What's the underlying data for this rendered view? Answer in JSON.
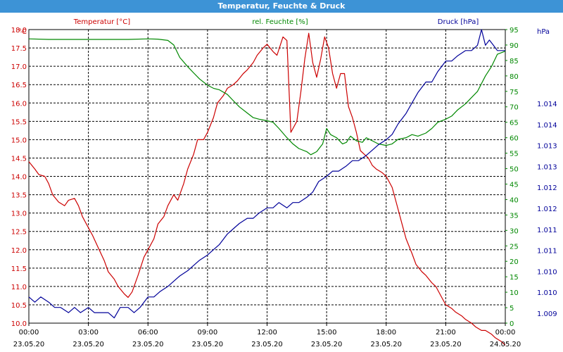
{
  "window": {
    "title": "Temperatur, Feuchte & Druck"
  },
  "chart_data": {
    "type": "line",
    "title": "Temperatur, Feuchte & Druck",
    "grid": true,
    "x_ticks": [
      {
        "time": "00:00",
        "date": "23.05.20"
      },
      {
        "time": "03:00",
        "date": "23.05.20"
      },
      {
        "time": "06:00",
        "date": "23.05.20"
      },
      {
        "time": "09:00",
        "date": "23.05.20"
      },
      {
        "time": "12:00",
        "date": "23.05.20"
      },
      {
        "time": "15:00",
        "date": "23.05.20"
      },
      {
        "time": "18:00",
        "date": "23.05.20"
      },
      {
        "time": "21:00",
        "date": "23.05.20"
      },
      {
        "time": "00:00",
        "date": "24.05.20"
      }
    ],
    "axes": {
      "temperature": {
        "label": "Temperatur [°C]",
        "unit": "°C",
        "color": "#cc0000",
        "range": [
          10.0,
          18.0
        ],
        "ticks": [
          "10.0",
          "10.5",
          "11.0",
          "11.5",
          "12.0",
          "12.5",
          "13.0",
          "13.5",
          "14.0",
          "14.5",
          "15.0",
          "15.5",
          "16.0",
          "16.5",
          "17.0",
          "17.5",
          "18.0"
        ]
      },
      "humidity": {
        "label": "rel. Feuchte [%]",
        "unit": "%",
        "color": "#008800",
        "range": [
          0,
          95
        ],
        "ticks": [
          "0",
          "5",
          "10",
          "15",
          "20",
          "25",
          "30",
          "35",
          "40",
          "45",
          "50",
          "55",
          "60",
          "65",
          "70",
          "75",
          "80",
          "85",
          "90",
          "95"
        ]
      },
      "pressure": {
        "label": "Druck [hPa]",
        "unit": "hPa",
        "color": "#000099",
        "range": [
          1.009,
          1.0146
        ],
        "ticks": [
          "1.009",
          "1.010",
          "1.010",
          "1.011",
          "1.011",
          "1.012",
          "1.012",
          "1.013",
          "1.013",
          "1.014",
          "1.014"
        ]
      }
    },
    "series": [
      {
        "name": "Temperatur [°C]",
        "axis": "temperature",
        "color": "#cc0000",
        "x": [
          0,
          0.3,
          0.5,
          0.8,
          1,
          1.2,
          1.5,
          1.8,
          2,
          2.3,
          2.5,
          2.7,
          3,
          3.2,
          3.5,
          3.8,
          4,
          4.3,
          4.5,
          4.8,
          5,
          5.2,
          5.5,
          5.8,
          6,
          6.3,
          6.5,
          6.8,
          7,
          7.3,
          7.5,
          7.8,
          8,
          8.3,
          8.5,
          8.8,
          9,
          9.3,
          9.5,
          9.8,
          10,
          10.3,
          10.5,
          10.8,
          11,
          11.3,
          11.5,
          11.8,
          12,
          12.3,
          12.5,
          12.8,
          13,
          13.2,
          13.5,
          13.7,
          13.9,
          14.1,
          14.3,
          14.5,
          14.7,
          14.9,
          15.1,
          15.3,
          15.5,
          15.7,
          15.9,
          16.1,
          16.3,
          16.5,
          16.7,
          16.9,
          17.1,
          17.3,
          17.5,
          17.8,
          18,
          18.3,
          18.5,
          18.8,
          19,
          19.3,
          19.5,
          19.8,
          20,
          20.3,
          20.5,
          20.8,
          21,
          21.3,
          21.5,
          21.8,
          22,
          22.3,
          22.5,
          22.8,
          23,
          23.3,
          23.5,
          23.8,
          24
        ],
        "values": [
          14.4,
          14.2,
          14.05,
          14.0,
          13.8,
          13.5,
          13.3,
          13.2,
          13.35,
          13.4,
          13.2,
          12.9,
          12.6,
          12.4,
          12.05,
          11.7,
          11.4,
          11.2,
          11.0,
          10.8,
          10.7,
          10.85,
          11.3,
          11.8,
          12.0,
          12.3,
          12.7,
          12.9,
          13.2,
          13.5,
          13.35,
          13.8,
          14.2,
          14.6,
          15.0,
          15.0,
          15.2,
          15.6,
          16.0,
          16.2,
          16.4,
          16.5,
          16.6,
          16.8,
          16.9,
          17.1,
          17.3,
          17.5,
          17.6,
          17.4,
          17.3,
          17.8,
          17.7,
          15.2,
          15.5,
          16.3,
          17.2,
          17.9,
          17.1,
          16.7,
          17.2,
          17.8,
          17.5,
          16.8,
          16.4,
          16.8,
          16.8,
          15.9,
          15.6,
          15.2,
          14.7,
          14.6,
          14.5,
          14.3,
          14.2,
          14.1,
          14.0,
          13.7,
          13.3,
          12.7,
          12.3,
          11.9,
          11.6,
          11.4,
          11.3,
          11.1,
          11.0,
          10.7,
          10.5,
          10.4,
          10.3,
          10.2,
          10.1,
          10.0,
          9.9,
          9.8,
          9.8,
          9.7,
          9.6,
          9.5,
          9.4
        ]
      },
      {
        "name": "rel. Feuchte [%]",
        "axis": "humidity",
        "color": "#008800",
        "x": [
          0,
          1,
          2,
          3,
          4,
          5,
          6,
          6.5,
          7,
          7.3,
          7.6,
          8,
          8.3,
          8.6,
          9,
          9.3,
          9.6,
          10,
          10.3,
          10.6,
          11,
          11.3,
          11.6,
          12,
          12.3,
          12.6,
          13,
          13.3,
          13.6,
          14,
          14.2,
          14.5,
          14.8,
          15,
          15.2,
          15.5,
          15.8,
          16,
          16.2,
          16.5,
          16.8,
          17,
          17.3,
          17.6,
          18,
          18.3,
          18.6,
          19,
          19.3,
          19.6,
          20,
          20.3,
          20.6,
          21,
          21.3,
          21.6,
          22,
          22.3,
          22.6,
          23,
          23.3,
          23.6,
          24
        ],
        "values": [
          92,
          91.8,
          91.8,
          91.8,
          91.8,
          91.8,
          92,
          91.9,
          91.5,
          90,
          86,
          83,
          81,
          79,
          77,
          76,
          75.5,
          74,
          72,
          70,
          68,
          66.5,
          66,
          65.5,
          65,
          63,
          60,
          58,
          56.5,
          55.5,
          54.5,
          55.5,
          58,
          63,
          61,
          60,
          58,
          58.5,
          60.5,
          59,
          58.5,
          60,
          59,
          58,
          57.5,
          58,
          59.5,
          60,
          61,
          60.5,
          61.5,
          63,
          65,
          66,
          67,
          69,
          71,
          73,
          75,
          80,
          83,
          87,
          88
        ]
      },
      {
        "name": "Druck [hPa]",
        "axis": "pressure",
        "color": "#000099",
        "x": [
          0,
          0.3,
          0.6,
          1,
          1.3,
          1.6,
          2,
          2.3,
          2.6,
          3,
          3.3,
          3.6,
          4,
          4.3,
          4.6,
          5,
          5.3,
          5.6,
          6,
          6.3,
          6.6,
          7,
          7.3,
          7.6,
          8,
          8.3,
          8.6,
          9,
          9.3,
          9.6,
          10,
          10.3,
          10.6,
          11,
          11.3,
          11.6,
          12,
          12.3,
          12.6,
          13,
          13.3,
          13.6,
          14,
          14.3,
          14.6,
          15,
          15.3,
          15.6,
          16,
          16.3,
          16.6,
          17,
          17.3,
          17.6,
          18,
          18.3,
          18.6,
          19,
          19.3,
          19.6,
          20,
          20.3,
          20.6,
          21,
          21.3,
          21.6,
          22,
          22.3,
          22.6,
          22.8,
          23,
          23.2,
          23.4,
          23.6,
          23.8,
          24
        ],
        "values": [
          1.0095,
          1.0094,
          1.0095,
          1.0094,
          1.0093,
          1.0093,
          1.0092,
          1.0093,
          1.0092,
          1.0093,
          1.0092,
          1.0092,
          1.0092,
          1.0091,
          1.0093,
          1.0093,
          1.0092,
          1.0093,
          1.0095,
          1.0095,
          1.0096,
          1.0097,
          1.0098,
          1.0099,
          1.01,
          1.0101,
          1.0102,
          1.0103,
          1.0104,
          1.0105,
          1.0107,
          1.0108,
          1.0109,
          1.011,
          1.011,
          1.0111,
          1.0112,
          1.0112,
          1.0113,
          1.0112,
          1.0113,
          1.0113,
          1.0114,
          1.0115,
          1.0117,
          1.0118,
          1.0119,
          1.0119,
          1.012,
          1.0121,
          1.0121,
          1.0122,
          1.0123,
          1.0124,
          1.0125,
          1.0126,
          1.0128,
          1.013,
          1.0132,
          1.0134,
          1.0136,
          1.0136,
          1.0138,
          1.014,
          1.014,
          1.0141,
          1.0142,
          1.0142,
          1.0143,
          1.0146,
          1.0143,
          1.0144,
          1.0143,
          1.0142,
          1.0142,
          1.0142
        ]
      }
    ]
  }
}
